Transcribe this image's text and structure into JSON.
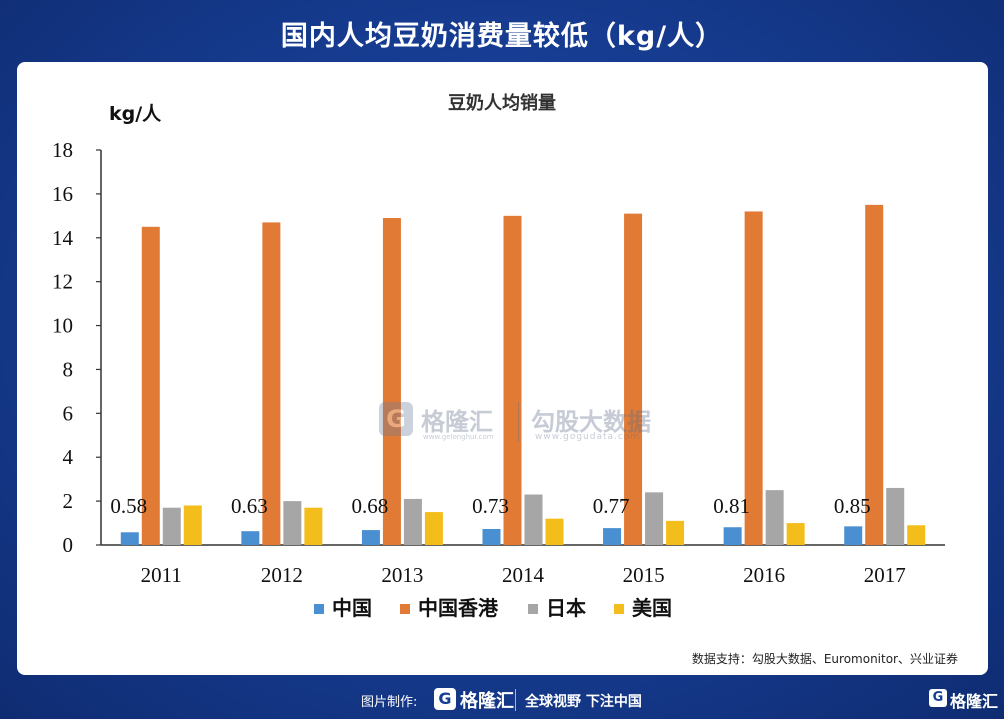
{
  "page": {
    "title": "国内人均豆奶消费量较低（kg/人）",
    "source": "数据支持：勾股大数据、Euromonitor、兴业证券"
  },
  "watermark": {
    "logo_letter": "G",
    "brand": "格隆汇",
    "brand_url": "www.gelonghui.com",
    "data_brand": "勾股大数据",
    "data_url": "www.gogudata.com"
  },
  "footer": {
    "label": "图片制作:",
    "logo_letter": "G",
    "brand": "格隆汇",
    "slogan": "全球视野 下注中国",
    "corner_logo_letter": "G",
    "corner_brand": "格隆汇"
  },
  "colors": {
    "background": "#173e95",
    "card": "#ffffff",
    "series": [
      "#4a8fd1",
      "#e07a35",
      "#a6a6a6",
      "#f3be1c"
    ]
  },
  "chart_data": {
    "type": "bar",
    "title": "豆奶人均销量",
    "ylabel": "kg/人",
    "xlabel": "",
    "ylim": [
      0,
      18
    ],
    "yticks": [
      0,
      2,
      4,
      6,
      8,
      10,
      12,
      14,
      16,
      18
    ],
    "categories": [
      "2011",
      "2012",
      "2013",
      "2014",
      "2015",
      "2016",
      "2017"
    ],
    "series": [
      {
        "name": "中国",
        "values": [
          0.58,
          0.63,
          0.68,
          0.73,
          0.77,
          0.81,
          0.85
        ]
      },
      {
        "name": "中国香港",
        "values": [
          14.5,
          14.7,
          14.9,
          15.0,
          15.1,
          15.2,
          15.5
        ]
      },
      {
        "name": "日本",
        "values": [
          1.7,
          2.0,
          2.1,
          2.3,
          2.4,
          2.5,
          2.6
        ]
      },
      {
        "name": "美国",
        "values": [
          1.8,
          1.7,
          1.5,
          1.2,
          1.1,
          1.0,
          0.9
        ]
      }
    ],
    "data_labels": [
      "0.58",
      "0.63",
      "0.68",
      "0.73",
      "0.77",
      "0.81",
      "0.85"
    ],
    "legend_position": "bottom",
    "grid": false
  }
}
